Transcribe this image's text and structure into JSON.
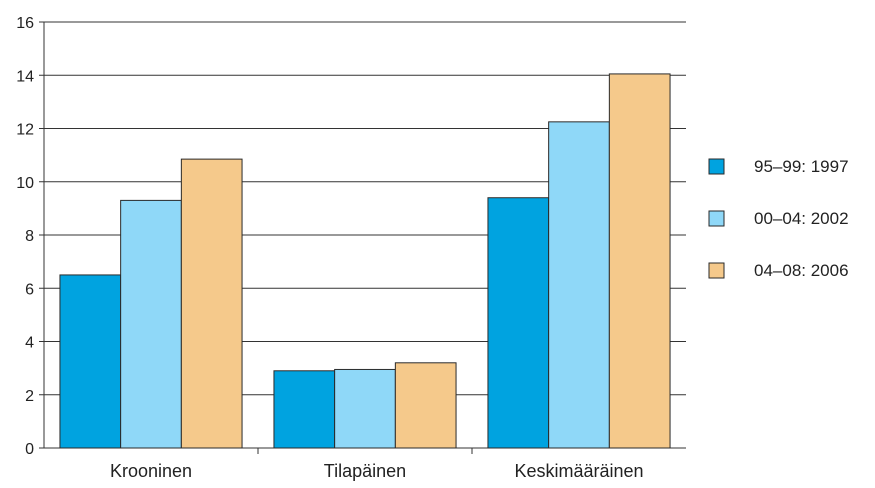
{
  "chart_data": {
    "type": "bar",
    "categories": [
      "Krooninen",
      "Tilapäinen",
      "Keskimääräinen"
    ],
    "series": [
      {
        "name": "95–99: 1997",
        "values": [
          6.5,
          2.9,
          9.4
        ],
        "color": "#00a3e0"
      },
      {
        "name": "00–04: 2002",
        "values": [
          9.3,
          2.95,
          12.25
        ],
        "color": "#8fd8f8"
      },
      {
        "name": "04–08: 2006",
        "values": [
          10.85,
          3.2,
          14.05
        ],
        "color": "#f5c98b"
      }
    ],
    "ylim": [
      0,
      16
    ],
    "yticks": [
      "0",
      "2",
      "4",
      "6",
      "8",
      "10",
      "12",
      "14",
      "16"
    ],
    "grid": true,
    "legend_position": "right"
  }
}
